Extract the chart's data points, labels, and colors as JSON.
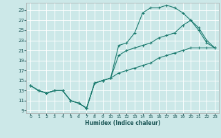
{
  "xlabel": "Humidex (Indice chaleur)",
  "bg_color": "#cce8e8",
  "grid_color": "#ffffff",
  "line_color": "#1a7a6e",
  "xlim": [
    -0.5,
    23.5
  ],
  "ylim": [
    8.5,
    30.5
  ],
  "xticks": [
    0,
    1,
    2,
    3,
    4,
    5,
    6,
    7,
    8,
    9,
    10,
    11,
    12,
    13,
    14,
    15,
    16,
    17,
    18,
    19,
    20,
    21,
    22,
    23
  ],
  "yticks": [
    9,
    11,
    13,
    15,
    17,
    19,
    21,
    23,
    25,
    27,
    29
  ],
  "curve1_x": [
    0,
    1,
    2,
    3,
    4,
    5,
    6,
    7,
    8,
    9,
    10,
    11,
    12,
    13,
    14,
    15,
    16,
    17,
    18,
    19,
    20,
    21,
    22,
    23
  ],
  "curve1_y": [
    14,
    13,
    12.5,
    13,
    13,
    11,
    10.5,
    9.5,
    14.5,
    15,
    15.5,
    22,
    22.5,
    24.5,
    28.5,
    29.5,
    29.5,
    30,
    29.5,
    28.5,
    27,
    25,
    22.5,
    21.5
  ],
  "curve2_x": [
    0,
    1,
    2,
    3,
    4,
    5,
    6,
    7,
    8,
    9,
    10,
    11,
    12,
    13,
    14,
    15,
    16,
    17,
    18,
    19,
    20,
    21,
    22,
    23
  ],
  "curve2_y": [
    14,
    13,
    12.5,
    13,
    13,
    11,
    10.5,
    9.5,
    14.5,
    15,
    15.5,
    20,
    21,
    21.5,
    22,
    22.5,
    23.5,
    24,
    24.5,
    26,
    27,
    25.5,
    23,
    21.5
  ],
  "curve3_x": [
    0,
    1,
    2,
    3,
    4,
    5,
    6,
    7,
    8,
    9,
    10,
    11,
    12,
    13,
    14,
    15,
    16,
    17,
    18,
    19,
    20,
    21,
    22,
    23
  ],
  "curve3_y": [
    14,
    13,
    12.5,
    13,
    13,
    11,
    10.5,
    9.5,
    14.5,
    15,
    15.5,
    16.5,
    17,
    17.5,
    18,
    18.5,
    19.5,
    20,
    20.5,
    21,
    21.5,
    21.5,
    21.5,
    21.5
  ]
}
